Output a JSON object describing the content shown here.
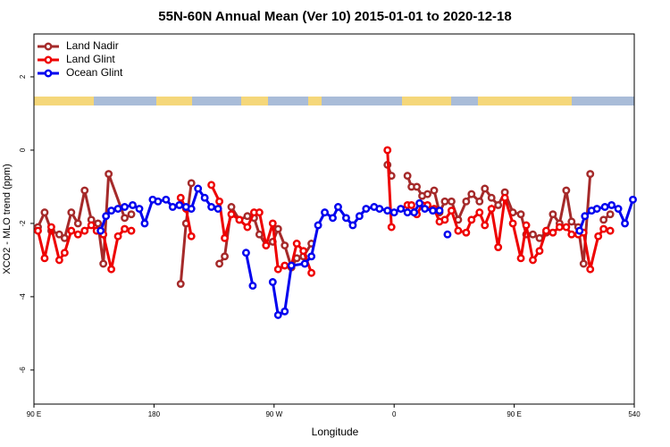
{
  "chart_data": {
    "type": "line",
    "title": "55N-60N Annual Mean (Ver 10)   2015-01-01 to 2020-12-18",
    "x_label": "Longitude",
    "y_label": "XCO2 - MLO trend (ppm)",
    "xlim": [
      90,
      540
    ],
    "xticks": [
      {
        "value": 90,
        "label": "90 E"
      },
      180,
      {
        "value": 270,
        "label": "90 W"
      },
      {
        "value": 360,
        "label": "0"
      },
      {
        "value": 450,
        "label": "90 E"
      },
      540
    ],
    "ylim": [
      -6.93,
      3.17
    ],
    "yticks": [
      -6,
      -4,
      -2,
      0,
      2
    ],
    "legend": "top-left",
    "series": [
      {
        "name": "Land Nadir",
        "color": "#a52a2a",
        "x": [
          93,
          98,
          103,
          109,
          113,
          118,
          123,
          128,
          133,
          138,
          142,
          146,
          158,
          163,
          null,
          200,
          204,
          208,
          null,
          229,
          233,
          238,
          244,
          250,
          255,
          259,
          264,
          269,
          273,
          278,
          283,
          287,
          292,
          298,
          null,
          355,
          358,
          null,
          370,
          373,
          377,
          381,
          385,
          390,
          394,
          398,
          403,
          408,
          414,
          418,
          424,
          428,
          433,
          438,
          443,
          449,
          455,
          459,
          464,
          469,
          474,
          479,
          484,
          489,
          493,
          498,
          502,
          507,
          null,
          517,
          522
        ],
        "values": [
          -2.1,
          -1.7,
          -2.2,
          -2.3,
          -2.4,
          -1.7,
          -2.0,
          -1.1,
          -1.9,
          -2.0,
          -3.1,
          -0.65,
          -1.85,
          -1.75,
          null,
          -3.65,
          -2.0,
          -0.9,
          null,
          -3.1,
          -2.9,
          -1.55,
          -1.9,
          -1.8,
          -1.85,
          -2.3,
          -2.6,
          -2.5,
          -2.15,
          -2.6,
          -3.2,
          -2.95,
          -2.9,
          -2.55,
          null,
          -0.4,
          -0.7,
          null,
          -0.7,
          -1.0,
          -1.0,
          -1.25,
          -1.2,
          -1.1,
          -1.7,
          -1.4,
          -1.4,
          -1.9,
          -1.4,
          -1.2,
          -1.4,
          -1.05,
          -1.3,
          -1.5,
          -1.15,
          -1.7,
          -1.75,
          -2.3,
          -2.3,
          -2.4,
          -2.25,
          -1.75,
          -2.0,
          -1.1,
          -1.95,
          -2.1,
          -3.1,
          -0.65,
          null,
          -1.9,
          -1.75
        ]
      },
      {
        "name": "Land Glint",
        "color": "#ee0000",
        "x": [
          93,
          98,
          103,
          109,
          113,
          118,
          123,
          128,
          133,
          137,
          142,
          148,
          153,
          158,
          163,
          null,
          200,
          204,
          208,
          null,
          223,
          229,
          233,
          238,
          244,
          250,
          255,
          259,
          264,
          269,
          273,
          278,
          283,
          287,
          292,
          298,
          null,
          355,
          358,
          null,
          370,
          373,
          377,
          381,
          385,
          390,
          394,
          398,
          403,
          408,
          414,
          418,
          424,
          428,
          433,
          438,
          443,
          449,
          455,
          459,
          464,
          469,
          474,
          479,
          484,
          489,
          493,
          498,
          502,
          507,
          513,
          517,
          522
        ],
        "values": [
          -2.2,
          -2.95,
          -2.1,
          -3.0,
          -2.8,
          -2.2,
          -2.3,
          -2.2,
          -2.05,
          -2.2,
          -2.3,
          -3.25,
          -2.35,
          -2.15,
          -2.2,
          null,
          -1.3,
          -1.6,
          -2.35,
          null,
          -0.95,
          -1.4,
          -2.4,
          -1.75,
          -1.9,
          -2.1,
          -1.7,
          -1.7,
          -2.6,
          -2.0,
          -3.25,
          -3.15,
          -3.15,
          -2.55,
          -2.75,
          -3.35,
          null,
          0,
          -2.1,
          null,
          -1.5,
          -1.5,
          -1.75,
          -1.5,
          -1.5,
          -1.6,
          -1.95,
          -1.9,
          -1.65,
          -2.2,
          -2.25,
          -1.9,
          -1.7,
          -2.05,
          -1.6,
          -2.65,
          -1.3,
          -2.0,
          -2.95,
          -2.05,
          -3.0,
          -2.75,
          -2.2,
          -2.25,
          -2.1,
          -2.1,
          -2.3,
          -2.3,
          -2.25,
          -3.25,
          -2.35,
          -2.15,
          -2.2
        ]
      },
      {
        "name": "Ocean Glint",
        "color": "#0000ee",
        "x": [
          140,
          144,
          148,
          153,
          158,
          164,
          169,
          173,
          179,
          183,
          189,
          194,
          199,
          204,
          208,
          213,
          218,
          223,
          228,
          null,
          249,
          254,
          null,
          269,
          273,
          278,
          283,
          293,
          298,
          303,
          308,
          314,
          318,
          324,
          329,
          334,
          339,
          345,
          349,
          355,
          360,
          365,
          370,
          375,
          379,
          383,
          389,
          394,
          null,
          400,
          null,
          499,
          503,
          508,
          512,
          518,
          523,
          528,
          533,
          539
        ],
        "values": [
          -2.2,
          -1.8,
          -1.65,
          -1.6,
          -1.55,
          -1.5,
          -1.6,
          -2.0,
          -1.35,
          -1.4,
          -1.35,
          -1.55,
          -1.5,
          -1.55,
          -1.6,
          -1.05,
          -1.3,
          -1.55,
          -1.6,
          null,
          -2.8,
          -3.7,
          null,
          -3.6,
          -4.5,
          -4.4,
          -3.15,
          -3.1,
          -2.9,
          -2.05,
          -1.7,
          -1.85,
          -1.55,
          -1.85,
          -2.05,
          -1.8,
          -1.6,
          -1.55,
          -1.6,
          -1.65,
          -1.7,
          -1.6,
          -1.7,
          -1.7,
          -1.45,
          -1.6,
          -1.65,
          -1.65,
          null,
          -2.3,
          null,
          -2.2,
          -1.8,
          -1.65,
          -1.6,
          -1.55,
          -1.5,
          -1.6,
          -2.0,
          -1.35
        ]
      }
    ]
  }
}
